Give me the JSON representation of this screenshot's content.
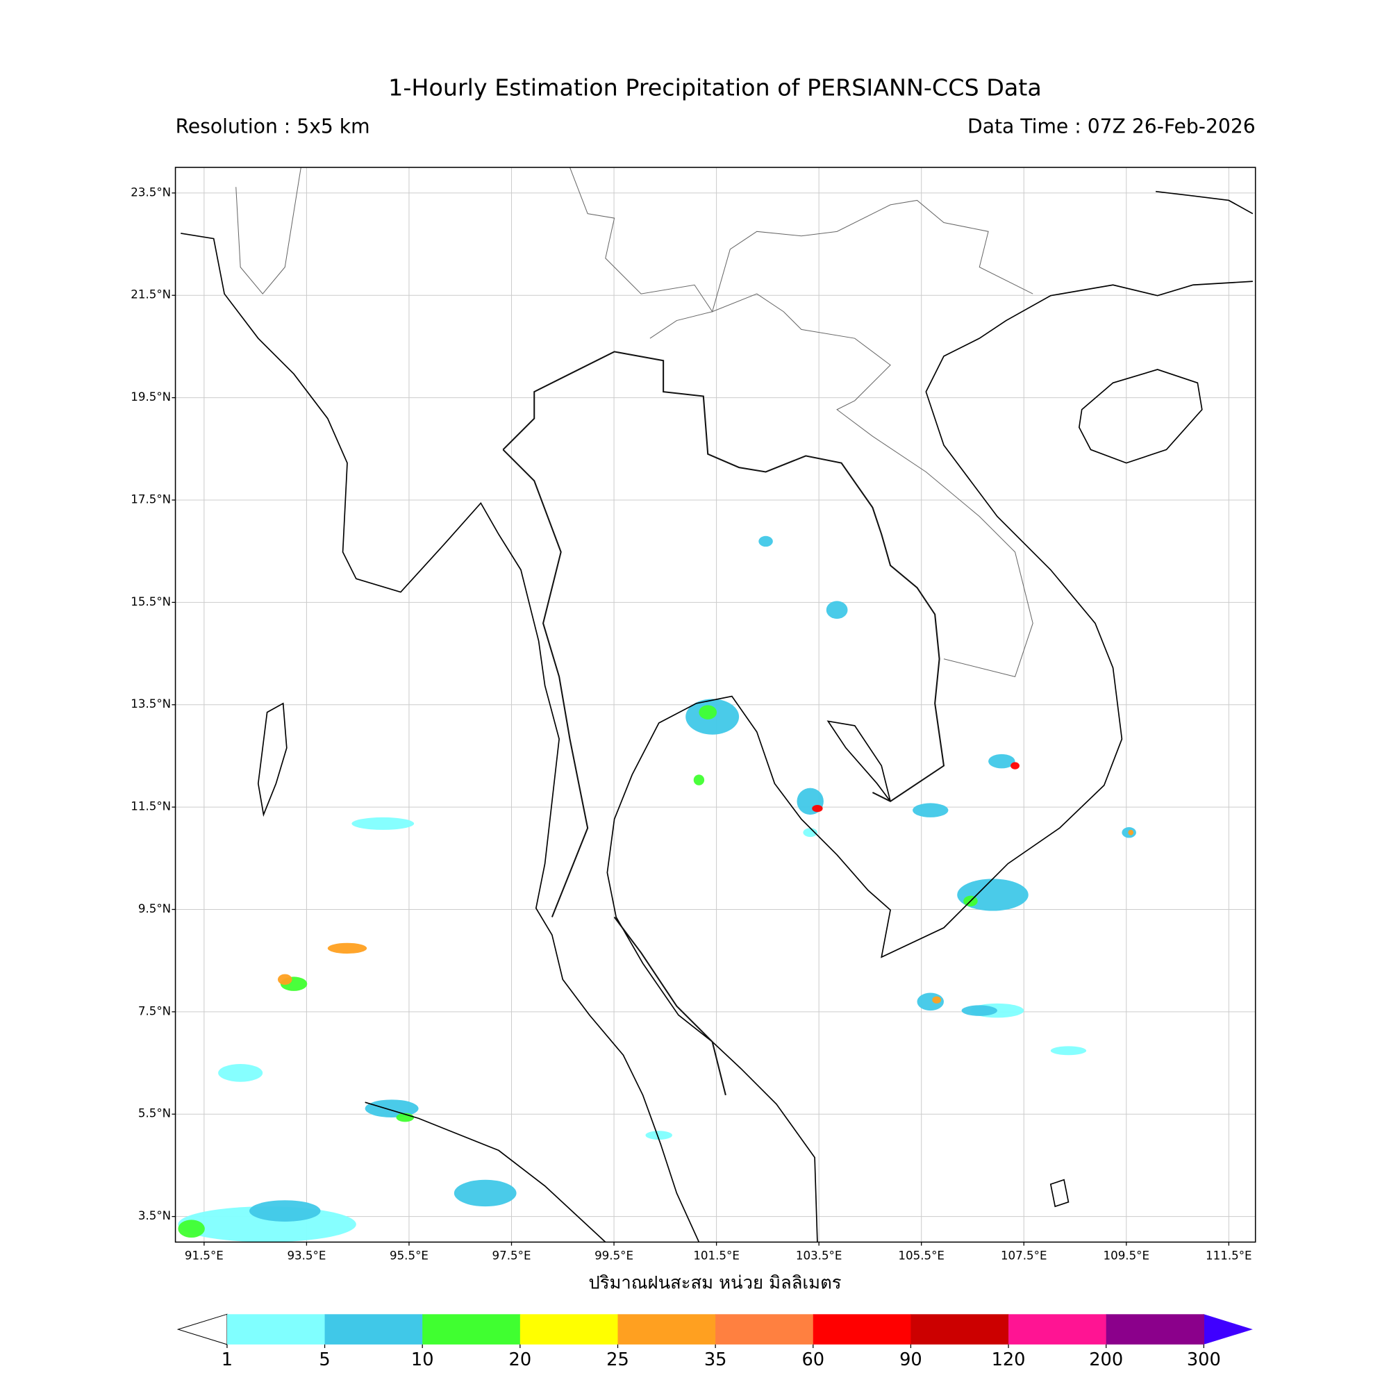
{
  "header": {
    "title": "1-Hourly Estimation Precipitation of PERSIANN-CCS Data",
    "resolution": "Resolution : 5x5 km",
    "data_time": "Data Time : 07Z 26-Feb-2026"
  },
  "map": {
    "lonlim": [
      90.94,
      112.02
    ],
    "latlim": [
      3.0,
      24.0
    ],
    "grid": true,
    "lon_ticks": [
      {
        "value": 91.5,
        "label": "91.5°E"
      },
      {
        "value": 93.5,
        "label": "93.5°E"
      },
      {
        "value": 95.5,
        "label": "95.5°E"
      },
      {
        "value": 97.5,
        "label": "97.5°E"
      },
      {
        "value": 99.5,
        "label": "99.5°E"
      },
      {
        "value": 101.5,
        "label": "101.5°E"
      },
      {
        "value": 103.5,
        "label": "103.5°E"
      },
      {
        "value": 105.5,
        "label": "105.5°E"
      },
      {
        "value": 107.5,
        "label": "107.5°E"
      },
      {
        "value": 109.5,
        "label": "109.5°E"
      },
      {
        "value": 111.5,
        "label": "111.5°E"
      }
    ],
    "lat_ticks": [
      {
        "value": 23.5,
        "label": "23.5°N"
      },
      {
        "value": 21.5,
        "label": "21.5°N"
      },
      {
        "value": 19.5,
        "label": "19.5°N"
      },
      {
        "value": 17.5,
        "label": "17.5°N"
      },
      {
        "value": 15.5,
        "label": "15.5°N"
      },
      {
        "value": 13.5,
        "label": "13.5°N"
      },
      {
        "value": 11.5,
        "label": "11.5°N"
      },
      {
        "value": 9.5,
        "label": "9.5°N"
      },
      {
        "value": 7.5,
        "label": "7.5°N"
      },
      {
        "value": 5.5,
        "label": "5.5°N"
      },
      {
        "value": 3.5,
        "label": "3.5°N"
      }
    ],
    "x_label": "ปริมาณฝนสะสม หน่วย มิลลิเมตร"
  },
  "colorbar": {
    "levels": [
      1,
      5,
      10,
      20,
      25,
      35,
      60,
      90,
      120,
      200,
      300
    ],
    "colors": [
      "#80ffff",
      "#40c8e8",
      "#40ff30",
      "#ffff00",
      "#ffa020",
      "#ff8040",
      "#ff0000",
      "#cc0000",
      "#ff1493",
      "#8b008b"
    ],
    "under_color": "#ffffff",
    "over_color": "#3f00ff"
  }
}
